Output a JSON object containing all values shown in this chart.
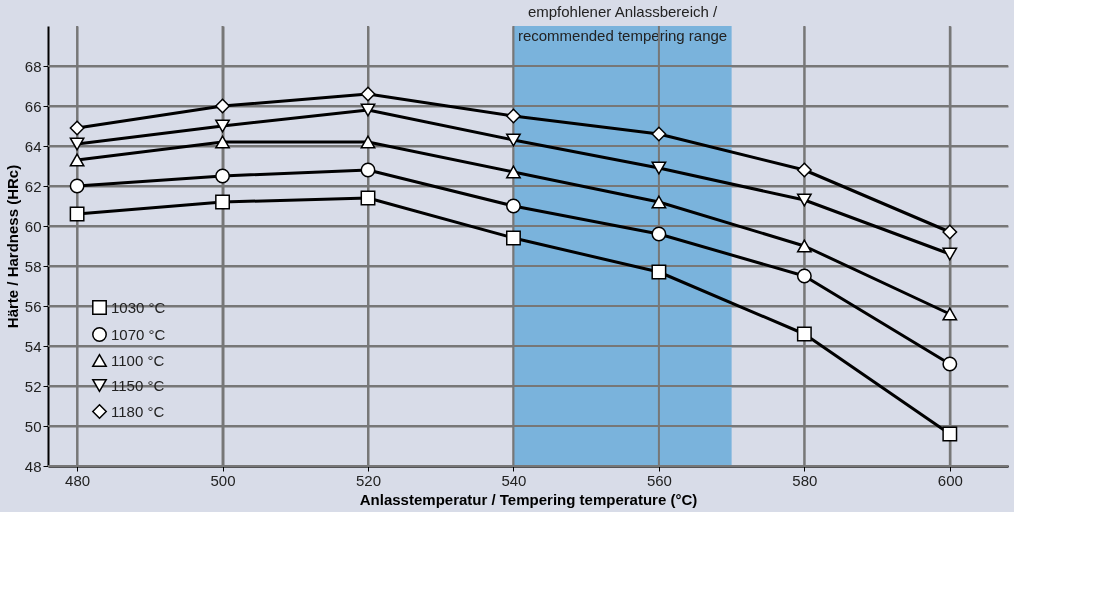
{
  "chart_data": {
    "type": "line",
    "xlabel": "Anlasstemperatur / Tempering temperature (°C)",
    "ylabel": "Härte / Hardness (HRc)",
    "x": [
      480,
      500,
      520,
      540,
      560,
      580,
      600
    ],
    "series": [
      {
        "name": "1030 °C",
        "color": "#000000",
        "marker": "square",
        "values": [
          60.6,
          61.2,
          61.4,
          59.4,
          57.7,
          54.6,
          49.6
        ]
      },
      {
        "name": "1070 °C",
        "color": "#000000",
        "marker": "circle",
        "values": [
          62.0,
          62.5,
          62.8,
          61.0,
          59.6,
          57.5,
          53.1
        ]
      },
      {
        "name": "1100 °C",
        "color": "#000000",
        "marker": "triangle",
        "values": [
          63.3,
          64.2,
          64.2,
          62.7,
          61.2,
          59.0,
          55.6
        ]
      },
      {
        "name": "1150 °C",
        "color": "#000000",
        "marker": "triangle-down",
        "values": [
          64.1,
          65.0,
          65.8,
          64.3,
          62.9,
          61.3,
          58.6
        ]
      },
      {
        "name": "1180 °C",
        "color": "#000000",
        "marker": "diamond",
        "values": [
          64.9,
          66.0,
          66.6,
          65.5,
          64.6,
          62.8,
          59.7
        ]
      }
    ],
    "xlim": [
      476,
      608
    ],
    "ylim": [
      48,
      70
    ],
    "xticks": [
      480,
      500,
      520,
      540,
      560,
      580,
      600
    ],
    "yticks": [
      48,
      50,
      52,
      54,
      56,
      58,
      60,
      62,
      64,
      66,
      68
    ],
    "bands": [
      {
        "axis": "x",
        "from": 540,
        "to": 570,
        "color": "#7ab3dc",
        "label": "empfohlener Anlassbereich /\nrecommended tempering range"
      }
    ],
    "grid": true,
    "legend": "bottom left",
    "line_style": "solid"
  }
}
